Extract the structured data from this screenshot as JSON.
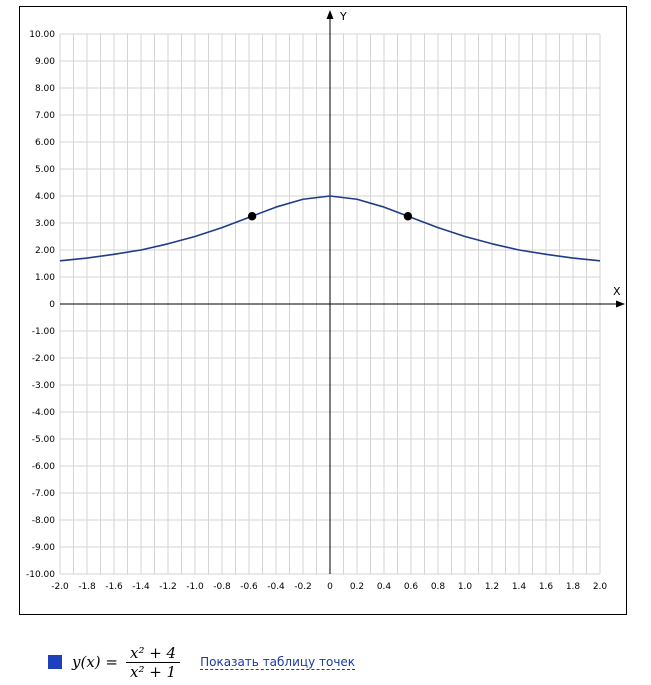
{
  "chart_data": {
    "type": "line",
    "xlabel": "X",
    "ylabel": "Y",
    "xlim": [
      -2.0,
      2.0
    ],
    "ylim": [
      -10.0,
      10.0
    ],
    "x_ticks": [
      -2.0,
      -1.8,
      -1.6,
      -1.4,
      -1.2,
      -1.0,
      -0.8,
      -0.6,
      -0.4,
      -0.2,
      0,
      0.2,
      0.4,
      0.6,
      0.8,
      1.0,
      1.2,
      1.4,
      1.6,
      1.8,
      2.0
    ],
    "x_tick_labels": [
      "-2.0",
      "-1.8",
      "-1.6",
      "-1.4",
      "-1.2",
      "-1.0",
      "-0.8",
      "-0.6",
      "-0.4",
      "-0.2",
      "0",
      "0.2",
      "0.4",
      "0.6",
      "0.8",
      "1.0",
      "1.2",
      "1.4",
      "1.6",
      "1.8",
      "2.0"
    ],
    "y_ticks": [
      -10,
      -9,
      -8,
      -7,
      -6,
      -5,
      -4,
      -3,
      -2,
      -1,
      0,
      1,
      2,
      3,
      4,
      5,
      6,
      7,
      8,
      9,
      10
    ],
    "y_tick_labels": [
      "-10.00",
      "-9.00",
      "-8.00",
      "-7.00",
      "-6.00",
      "-5.00",
      "-4.00",
      "-3.00",
      "-2.00",
      "-1.00",
      "0",
      "1.00",
      "2.00",
      "3.00",
      "4.00",
      "5.00",
      "6.00",
      "7.00",
      "8.00",
      "9.00",
      "10.00"
    ],
    "grid": true,
    "series": [
      {
        "color": "#1f3c88",
        "x": [
          -2.0,
          -1.8,
          -1.6,
          -1.4,
          -1.2,
          -1.0,
          -0.8,
          -0.6,
          -0.4,
          -0.2,
          0.0,
          0.2,
          0.4,
          0.6,
          0.8,
          1.0,
          1.2,
          1.4,
          1.6,
          1.8,
          2.0
        ],
        "y": [
          1.6,
          1.7,
          1.84,
          2.0,
          2.23,
          2.5,
          2.83,
          3.21,
          3.59,
          3.88,
          4.0,
          3.88,
          3.59,
          3.21,
          2.83,
          2.5,
          2.23,
          2.0,
          1.84,
          1.7,
          1.6
        ]
      }
    ],
    "markers": [
      {
        "x": -0.577,
        "y": 3.25
      },
      {
        "x": 0.577,
        "y": 3.25
      }
    ]
  },
  "legend": {
    "swatch_color": "#1f3fbf",
    "formula_lhs": "y(x) =",
    "formula_numerator": "x² + 4",
    "formula_denominator": "x² + 1",
    "link_label": "Показать таблицу точек"
  }
}
